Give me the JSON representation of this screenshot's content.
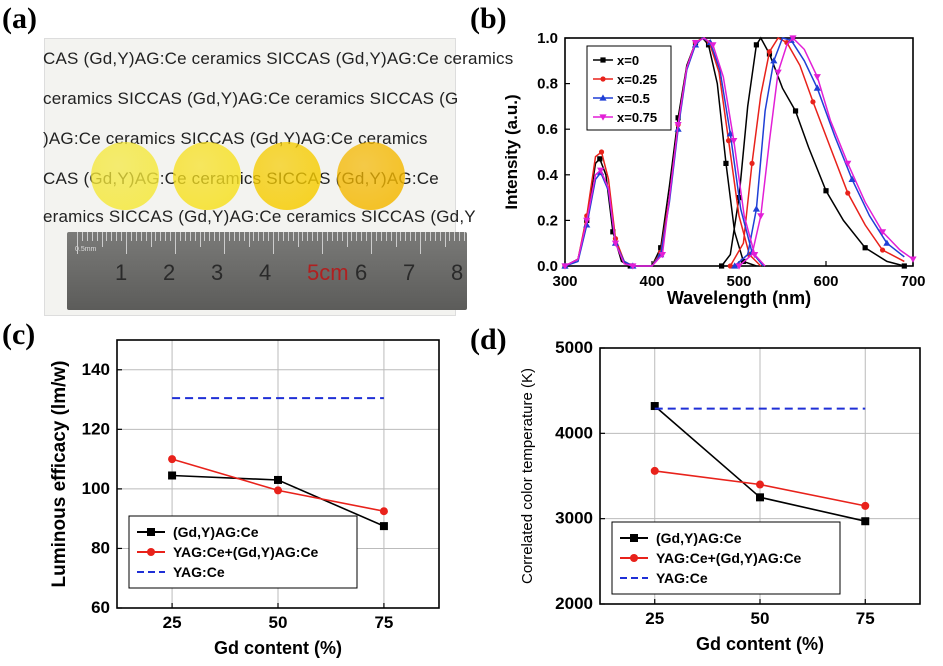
{
  "panel_labels": {
    "a": "(a)",
    "b": "(b)",
    "c": "(c)",
    "d": "(d)"
  },
  "photo": {
    "text_lines": [
      "CAS   (Gd,Y)AG:Ce   ceramics   SICCAS   (Gd,Y)AG:Ce   ceramics",
      "ceramics  SICCAS  (Gd,Y)AG:Ce  ceramics  SICCAS  (G",
      ")AG:Ce   ceramics   SICCAS   (Gd,Y)AG:Ce   ceramics",
      "CAS   (Gd,Y)AG:Ce   ceramics   SICCAS   (Gd,Y)AG:Ce",
      "eramics SICCAS (Gd,Y)AG:Ce ceramics SICCAS (Gd,Y"
    ],
    "ruler_numbers": [
      "1",
      "2",
      "3",
      "4",
      "5cm",
      "6",
      "7",
      "8"
    ],
    "ruler_small": "0.5mm",
    "disc_colors": [
      "#f5e83a",
      "#f7e020",
      "#f6cc00",
      "#f4b800"
    ]
  },
  "chart_data": [
    {
      "id": "b",
      "type": "line",
      "xlabel": "Wavelength (nm)",
      "ylabel": "Intensity (a.u.)",
      "xlim": [
        300,
        700
      ],
      "ylim": [
        0,
        1.0
      ],
      "xticks": [
        "300",
        "400",
        "500",
        "600",
        "700"
      ],
      "yticks": [
        "0.0",
        "0.2",
        "0.4",
        "0.6",
        "0.8",
        "1.0"
      ],
      "legend_position": "top-left",
      "series": [
        {
          "name": "x=0",
          "color": "#000000",
          "marker": "square",
          "excitation": [
            [
              300,
              0.0
            ],
            [
              315,
              0.03
            ],
            [
              325,
              0.2
            ],
            [
              335,
              0.45
            ],
            [
              340,
              0.47
            ],
            [
              347,
              0.4
            ],
            [
              355,
              0.15
            ],
            [
              365,
              0.02
            ],
            [
              375,
              0.0
            ],
            [
              400,
              0.0
            ],
            [
              410,
              0.08
            ],
            [
              420,
              0.35
            ],
            [
              430,
              0.65
            ],
            [
              440,
              0.88
            ],
            [
              450,
              0.98
            ],
            [
              458,
              1.0
            ],
            [
              465,
              0.97
            ],
            [
              475,
              0.8
            ],
            [
              485,
              0.45
            ],
            [
              495,
              0.15
            ],
            [
              505,
              0.02
            ],
            [
              520,
              0.0
            ]
          ],
          "emission": [
            [
              480,
              0.0
            ],
            [
              490,
              0.05
            ],
            [
              500,
              0.3
            ],
            [
              510,
              0.7
            ],
            [
              520,
              0.97
            ],
            [
              525,
              1.0
            ],
            [
              535,
              0.93
            ],
            [
              550,
              0.78
            ],
            [
              565,
              0.68
            ],
            [
              580,
              0.52
            ],
            [
              600,
              0.33
            ],
            [
              620,
              0.2
            ],
            [
              645,
              0.08
            ],
            [
              670,
              0.02
            ],
            [
              690,
              0.0
            ]
          ]
        },
        {
          "name": "x=0.25",
          "color": "#e8221b",
          "marker": "circle",
          "excitation": [
            [
              300,
              0.0
            ],
            [
              315,
              0.03
            ],
            [
              325,
              0.22
            ],
            [
              335,
              0.48
            ],
            [
              342,
              0.5
            ],
            [
              350,
              0.38
            ],
            [
              358,
              0.12
            ],
            [
              368,
              0.02
            ],
            [
              378,
              0.0
            ],
            [
              400,
              0.0
            ],
            [
              410,
              0.06
            ],
            [
              420,
              0.3
            ],
            [
              430,
              0.62
            ],
            [
              440,
              0.87
            ],
            [
              450,
              0.98
            ],
            [
              458,
              1.0
            ],
            [
              466,
              0.98
            ],
            [
              477,
              0.85
            ],
            [
              488,
              0.55
            ],
            [
              500,
              0.22
            ],
            [
              512,
              0.05
            ],
            [
              525,
              0.0
            ]
          ],
          "emission": [
            [
              490,
              0.0
            ],
            [
              505,
              0.1
            ],
            [
              515,
              0.45
            ],
            [
              525,
              0.75
            ],
            [
              535,
              0.94
            ],
            [
              545,
              1.0
            ],
            [
              555,
              0.98
            ],
            [
              570,
              0.88
            ],
            [
              585,
              0.72
            ],
            [
              605,
              0.52
            ],
            [
              625,
              0.32
            ],
            [
              645,
              0.18
            ],
            [
              665,
              0.07
            ],
            [
              690,
              0.02
            ]
          ]
        },
        {
          "name": "x=0.5",
          "color": "#1f3fd6",
          "marker": "triangle-up",
          "excitation": [
            [
              300,
              0.0
            ],
            [
              315,
              0.02
            ],
            [
              325,
              0.18
            ],
            [
              335,
              0.38
            ],
            [
              341,
              0.41
            ],
            [
              350,
              0.33
            ],
            [
              358,
              0.1
            ],
            [
              368,
              0.02
            ],
            [
              378,
              0.0
            ],
            [
              400,
              0.0
            ],
            [
              410,
              0.05
            ],
            [
              420,
              0.28
            ],
            [
              430,
              0.6
            ],
            [
              440,
              0.86
            ],
            [
              450,
              0.97
            ],
            [
              458,
              1.0
            ],
            [
              467,
              0.98
            ],
            [
              478,
              0.86
            ],
            [
              490,
              0.58
            ],
            [
              502,
              0.25
            ],
            [
              515,
              0.06
            ],
            [
              528,
              0.0
            ]
          ],
          "emission": [
            [
              495,
              0.0
            ],
            [
              510,
              0.05
            ],
            [
              520,
              0.25
            ],
            [
              530,
              0.68
            ],
            [
              540,
              0.9
            ],
            [
              550,
              1.0
            ],
            [
              560,
              0.99
            ],
            [
              575,
              0.9
            ],
            [
              590,
              0.78
            ],
            [
              610,
              0.57
            ],
            [
              630,
              0.38
            ],
            [
              650,
              0.22
            ],
            [
              670,
              0.1
            ],
            [
              690,
              0.04
            ]
          ]
        },
        {
          "name": "x=0.75",
          "color": "#e21fd6",
          "marker": "triangle-down",
          "excitation": [
            [
              300,
              0.0
            ],
            [
              315,
              0.03
            ],
            [
              325,
              0.2
            ],
            [
              335,
              0.4
            ],
            [
              341,
              0.42
            ],
            [
              350,
              0.34
            ],
            [
              358,
              0.1
            ],
            [
              368,
              0.01
            ],
            [
              378,
              0.0
            ],
            [
              400,
              0.0
            ],
            [
              412,
              0.05
            ],
            [
              420,
              0.3
            ],
            [
              430,
              0.62
            ],
            [
              440,
              0.87
            ],
            [
              450,
              0.98
            ],
            [
              460,
              1.0
            ],
            [
              470,
              0.97
            ],
            [
              482,
              0.83
            ],
            [
              494,
              0.55
            ],
            [
              506,
              0.22
            ],
            [
              518,
              0.05
            ],
            [
              530,
              0.0
            ]
          ],
          "emission": [
            [
              500,
              0.0
            ],
            [
              515,
              0.05
            ],
            [
              525,
              0.22
            ],
            [
              535,
              0.55
            ],
            [
              545,
              0.85
            ],
            [
              555,
              0.97
            ],
            [
              562,
              1.0
            ],
            [
              575,
              0.95
            ],
            [
              590,
              0.83
            ],
            [
              605,
              0.64
            ],
            [
              625,
              0.45
            ],
            [
              645,
              0.28
            ],
            [
              665,
              0.15
            ],
            [
              685,
              0.07
            ],
            [
              700,
              0.03
            ]
          ]
        }
      ]
    },
    {
      "id": "c",
      "type": "line",
      "xlabel": "Gd content (%)",
      "ylabel": "Luminous efficacy (lm/w)",
      "xlim": [
        12,
        88
      ],
      "ylim": [
        60,
        150
      ],
      "xticks": [
        "25",
        "50",
        "75"
      ],
      "yticks": [
        "60",
        "80",
        "100",
        "120",
        "140"
      ],
      "grid": true,
      "legend_position": "bottom-left",
      "x": [
        25,
        50,
        75
      ],
      "series": [
        {
          "name": "(Gd,Y)AG:Ce",
          "color": "#000000",
          "marker": "square",
          "style": "solid",
          "values": [
            104.5,
            103,
            87.5
          ]
        },
        {
          "name": "YAG:Ce+(Gd,Y)AG:Ce",
          "color": "#e8221b",
          "marker": "circle",
          "style": "solid",
          "values": [
            110,
            99.5,
            92.5
          ]
        },
        {
          "name": "YAG:Ce",
          "color": "#1f2fd6",
          "marker": "none",
          "style": "dashed",
          "values": [
            130.5,
            130.5,
            130.5
          ]
        }
      ]
    },
    {
      "id": "d",
      "type": "line",
      "xlabel": "Gd content (%)",
      "ylabel": "Correlated color temperature (K)",
      "xlim": [
        12,
        88
      ],
      "ylim": [
        2000,
        5000
      ],
      "xticks": [
        "25",
        "50",
        "75"
      ],
      "yticks": [
        "2000",
        "3000",
        "4000",
        "5000"
      ],
      "grid": true,
      "legend_position": "bottom-left",
      "x": [
        25,
        50,
        75
      ],
      "series": [
        {
          "name": "(Gd,Y)AG:Ce",
          "color": "#000000",
          "marker": "square",
          "style": "solid",
          "values": [
            4320,
            3250,
            2970
          ]
        },
        {
          "name": "YAG:Ce+(Gd,Y)AG:Ce",
          "color": "#e8221b",
          "marker": "circle",
          "style": "solid",
          "values": [
            3560,
            3400,
            3150
          ]
        },
        {
          "name": "YAG:Ce",
          "color": "#1f2fd6",
          "marker": "none",
          "style": "dashed",
          "values": [
            4290,
            4290,
            4290
          ]
        }
      ]
    }
  ]
}
